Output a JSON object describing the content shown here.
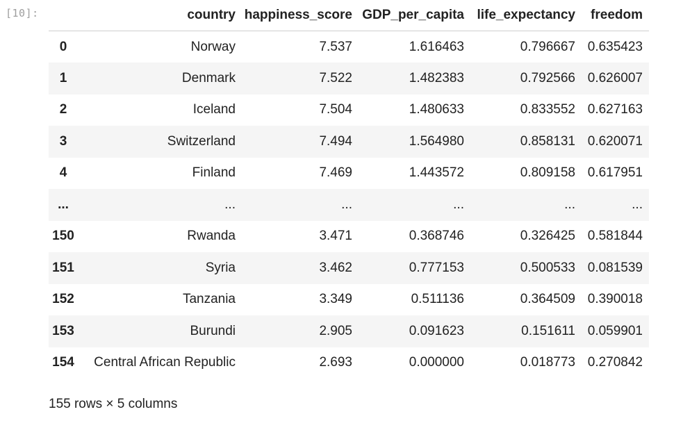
{
  "cell": {
    "prompt": "[10]:"
  },
  "table": {
    "index_header": "",
    "columns": [
      "country",
      "happiness_score",
      "GDP_per_capita",
      "life_expectancy",
      "freedom"
    ],
    "rows": [
      {
        "index": "0",
        "values": [
          "Norway",
          "7.537",
          "1.616463",
          "0.796667",
          "0.635423"
        ]
      },
      {
        "index": "1",
        "values": [
          "Denmark",
          "7.522",
          "1.482383",
          "0.792566",
          "0.626007"
        ]
      },
      {
        "index": "2",
        "values": [
          "Iceland",
          "7.504",
          "1.480633",
          "0.833552",
          "0.627163"
        ]
      },
      {
        "index": "3",
        "values": [
          "Switzerland",
          "7.494",
          "1.564980",
          "0.858131",
          "0.620071"
        ]
      },
      {
        "index": "4",
        "values": [
          "Finland",
          "7.469",
          "1.443572",
          "0.809158",
          "0.617951"
        ]
      },
      {
        "index": "...",
        "values": [
          "...",
          "...",
          "...",
          "...",
          "..."
        ]
      },
      {
        "index": "150",
        "values": [
          "Rwanda",
          "3.471",
          "0.368746",
          "0.326425",
          "0.581844"
        ]
      },
      {
        "index": "151",
        "values": [
          "Syria",
          "3.462",
          "0.777153",
          "0.500533",
          "0.081539"
        ]
      },
      {
        "index": "152",
        "values": [
          "Tanzania",
          "3.349",
          "0.511136",
          "0.364509",
          "0.390018"
        ]
      },
      {
        "index": "153",
        "values": [
          "Burundi",
          "2.905",
          "0.091623",
          "0.151611",
          "0.059901"
        ]
      },
      {
        "index": "154",
        "values": [
          "Central African Republic",
          "2.693",
          "0.000000",
          "0.018773",
          "0.270842"
        ]
      }
    ]
  },
  "summary": "155 rows × 5 columns"
}
